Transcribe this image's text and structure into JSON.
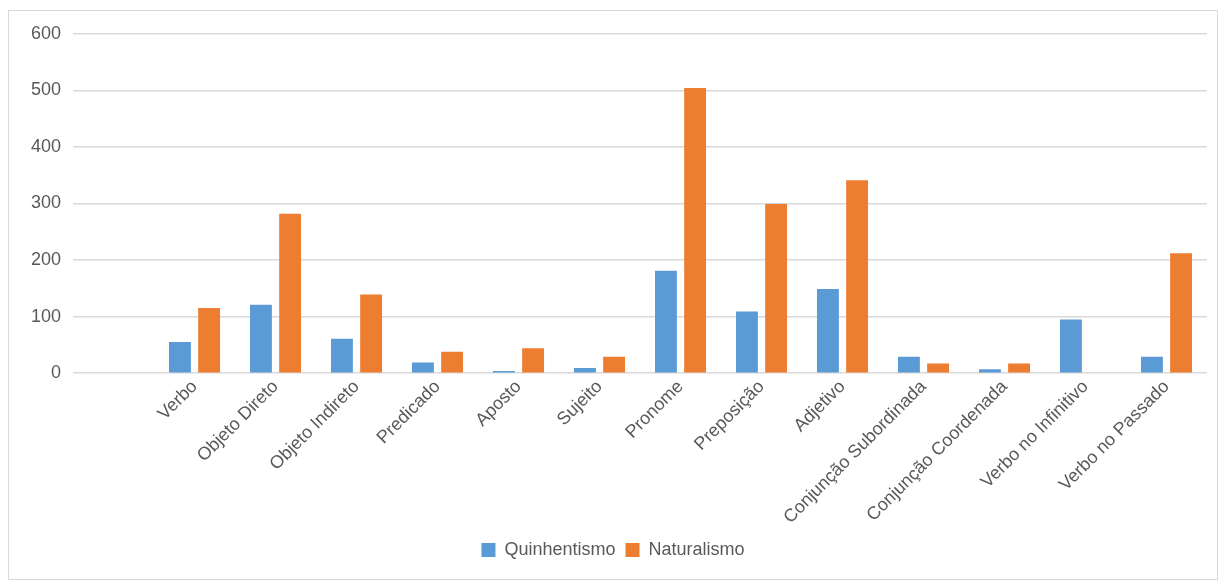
{
  "chart_data": {
    "type": "bar",
    "categories": [
      null,
      "Verbo",
      "Objeto Direto",
      "Objeto Indireto",
      "Predicado",
      "Aposto",
      "Sujeito",
      "Pronome",
      "Preposição",
      "Adjetivo",
      "Conjunção Subordinada",
      "Conjunção Coordenada",
      "Verbo no Infinitivo",
      "Verbo no Passado"
    ],
    "series": [
      {
        "name": "Quinhentismo",
        "color": "#5b9bd5",
        "values": [
          null,
          55,
          121,
          61,
          19,
          4,
          9,
          181,
          109,
          149,
          29,
          7,
          95,
          29
        ]
      },
      {
        "name": "Naturalismo",
        "color": "#ed7d31",
        "values": [
          null,
          115,
          282,
          139,
          38,
          44,
          29,
          504,
          299,
          341,
          17,
          17,
          null,
          212
        ]
      }
    ],
    "ylim": [
      0,
      600
    ],
    "yticks": [
      0,
      100,
      200,
      300,
      400,
      500,
      600
    ],
    "grid": "y",
    "legend": "bottom"
  }
}
